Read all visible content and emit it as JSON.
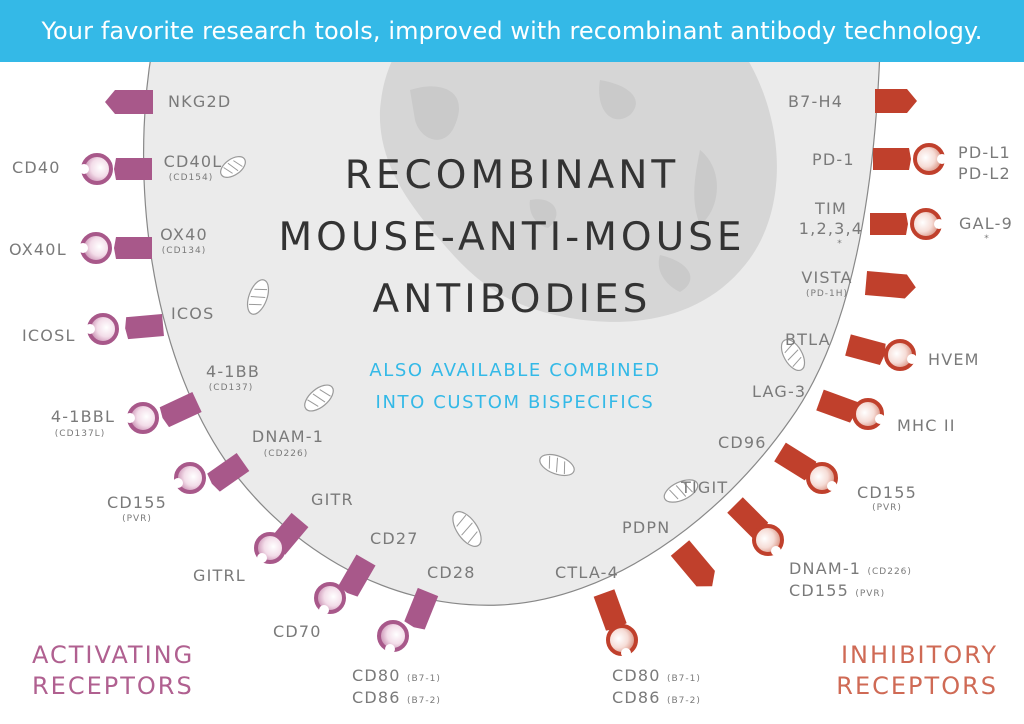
{
  "banner": "Your favorite research tools, improved with recombinant antibody technology.",
  "title": [
    "RECOMBINANT",
    "MOUSE-ANTI-MOUSE",
    "ANTIBODIES"
  ],
  "subtitle": [
    "ALSO AVAILABLE COMBINED",
    "INTO CUSTOM BISPECIFICS"
  ],
  "legend": {
    "activating": [
      "ACTIVATING",
      "RECEPTORS"
    ],
    "inhibitory": [
      "INHIBITORY",
      "RECEPTORS"
    ]
  },
  "colors": {
    "banner": "#34b9e7",
    "activating": "#a8588a",
    "inhibitory": "#c0402c",
    "cell": "#ebebeb",
    "text": "#7a7a7a"
  },
  "activating_receptors": [
    {
      "name": "NKG2D"
    },
    {
      "name": "CD40L",
      "alias": "(CD154)",
      "ligand": "CD40"
    },
    {
      "name": "OX40",
      "alias": "(CD134)",
      "ligand": "OX40L"
    },
    {
      "name": "ICOS",
      "ligand": "ICOSL"
    },
    {
      "name": "4-1BB",
      "alias": "(CD137)",
      "ligand": "4-1BBL",
      "ligand_alias": "(CD137L)"
    },
    {
      "name": "DNAM-1",
      "alias": "(CD226)",
      "ligand": "CD155",
      "ligand_alias": "(PVR)"
    },
    {
      "name": "GITR",
      "ligand": "GITRL"
    },
    {
      "name": "CD27",
      "ligand": "CD70"
    },
    {
      "name": "CD28",
      "ligand": "CD80",
      "ligand_alias": "(B7-1)",
      "ligand2": "CD86",
      "ligand2_alias": "(B7-2)"
    }
  ],
  "inhibitory_receptors": [
    {
      "name": "B7-H4"
    },
    {
      "name": "PD-1",
      "ligand": "PD-L1",
      "ligand2": "PD-L2"
    },
    {
      "name": "TIM",
      "name2": "1,2,3,4",
      "mark": "*",
      "ligand": "GAL-9",
      "ligand_mark": "*"
    },
    {
      "name": "VISTA",
      "alias": "(PD-1H)"
    },
    {
      "name": "BTLA",
      "ligand": "HVEM"
    },
    {
      "name": "LAG-3",
      "ligand": "MHC II"
    },
    {
      "name": "CD96",
      "ligand": "CD155",
      "ligand_alias": "(PVR)"
    },
    {
      "name": "TIGIT",
      "ligand": "DNAM-1",
      "ligand_alias": "(CD226)",
      "ligand2": "CD155",
      "ligand2_alias": "(PVR)"
    },
    {
      "name": "PDPN"
    },
    {
      "name": "CTLA-4",
      "ligand": "CD80",
      "ligand_alias": "(B7-1)",
      "ligand2": "CD86",
      "ligand2_alias": "(B7-2)"
    }
  ]
}
